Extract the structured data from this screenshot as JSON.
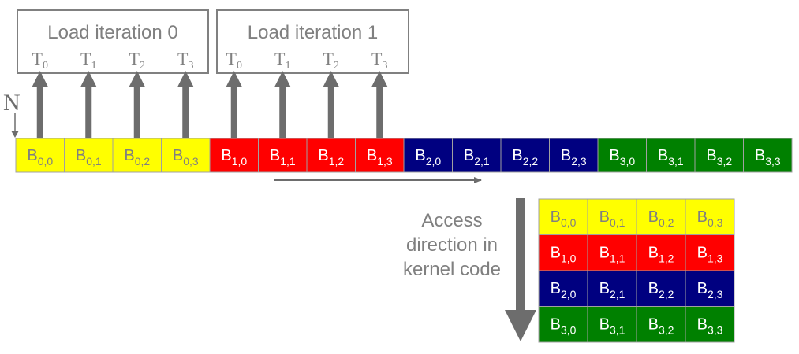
{
  "iteration_boxes": [
    {
      "title": "Load iteration 0",
      "threads": [
        "0",
        "1",
        "2",
        "3"
      ]
    },
    {
      "title": "Load iteration 1",
      "threads": [
        "0",
        "1",
        "2",
        "3"
      ]
    }
  ],
  "thread_prefix": "T",
  "n_label": "N",
  "block_prefix": "B",
  "row_colors": [
    "#ffff00",
    "#ff0000",
    "#000080",
    "#008000"
  ],
  "row_text_colors": [
    "#808080",
    "#ffffff",
    "#ffffff",
    "#ffffff"
  ],
  "blocks": [
    [
      "0,0",
      "0,1",
      "0,2",
      "0,3"
    ],
    [
      "1,0",
      "1,1",
      "1,2",
      "1,3"
    ],
    [
      "2,0",
      "2,1",
      "2,2",
      "2,3"
    ],
    [
      "3,0",
      "3,1",
      "3,2",
      "3,3"
    ]
  ],
  "access_label": [
    "Access",
    "direction in",
    "kernel code"
  ],
  "arrow_color": "#6d6d6d",
  "text_gray": "#808080"
}
